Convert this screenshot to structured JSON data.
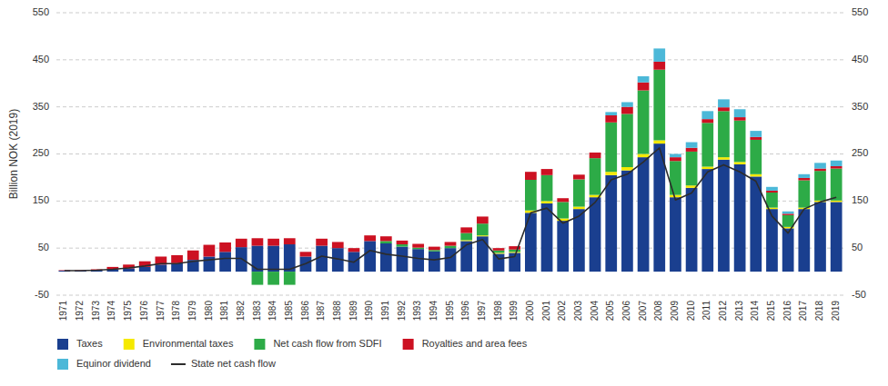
{
  "chart_data": {
    "type": "bar",
    "stacked": true,
    "ylabel": "Billion NOK (2019)",
    "categories": [
      "1971",
      "1972",
      "1973",
      "1974",
      "1975",
      "1976",
      "1977",
      "1978",
      "1979",
      "1980",
      "1981",
      "1982",
      "1983",
      "1984",
      "1985",
      "1986",
      "1987",
      "1988",
      "1989",
      "1990",
      "1991",
      "1992",
      "1993",
      "1994",
      "1995",
      "1996",
      "1997",
      "1998",
      "1999",
      "2000",
      "2001",
      "2002",
      "2003",
      "2004",
      "2005",
      "2006",
      "2007",
      "2008",
      "2009",
      "2010",
      "2011",
      "2012",
      "2013",
      "2014",
      "2015",
      "2016",
      "2017",
      "2018",
      "2019"
    ],
    "series": [
      {
        "name": "Taxes",
        "color": "#1A3F8F",
        "values": [
          2,
          2,
          3,
          5,
          7,
          10,
          15,
          18,
          25,
          32,
          42,
          52,
          55,
          55,
          58,
          32,
          55,
          50,
          42,
          65,
          60,
          53,
          48,
          43,
          50,
          65,
          75,
          38,
          40,
          125,
          145,
          108,
          133,
          158,
          205,
          215,
          243,
          272,
          158,
          178,
          218,
          238,
          228,
          202,
          133,
          92,
          133,
          148,
          148
        ]
      },
      {
        "name": "Environmental taxes",
        "color": "#F5E900",
        "values": [
          0,
          0,
          0,
          0,
          0,
          0,
          0,
          0,
          0,
          0,
          0,
          0,
          0,
          0,
          0,
          0,
          0,
          0,
          0,
          0,
          0,
          0,
          0,
          0,
          0,
          2,
          2,
          2,
          2,
          5,
          5,
          5,
          5,
          5,
          7,
          7,
          7,
          7,
          5,
          5,
          5,
          5,
          5,
          5,
          3,
          3,
          3,
          3,
          3
        ]
      },
      {
        "name": "Net cash flow from SDFI",
        "color": "#2DAB47",
        "values": [
          0,
          0,
          0,
          0,
          0,
          0,
          0,
          0,
          0,
          0,
          0,
          0,
          -28,
          -28,
          -28,
          0,
          0,
          0,
          0,
          0,
          5,
          5,
          3,
          3,
          5,
          15,
          25,
          5,
          5,
          65,
          55,
          35,
          58,
          78,
          105,
          113,
          135,
          150,
          72,
          72,
          93,
          98,
          88,
          73,
          32,
          25,
          58,
          63,
          68
        ]
      },
      {
        "name": "Royalties and area fees",
        "color": "#CC1122",
        "values": [
          1,
          1,
          2,
          5,
          8,
          12,
          17,
          17,
          20,
          25,
          20,
          18,
          16,
          15,
          13,
          10,
          15,
          13,
          8,
          12,
          10,
          8,
          8,
          7,
          8,
          12,
          15,
          5,
          7,
          17,
          13,
          8,
          10,
          12,
          15,
          15,
          17,
          17,
          8,
          8,
          8,
          8,
          7,
          6,
          4,
          3,
          5,
          5,
          5
        ]
      },
      {
        "name": "Equinor dividend",
        "color": "#4CB8D8",
        "values": [
          0,
          0,
          0,
          0,
          0,
          0,
          0,
          0,
          0,
          0,
          0,
          0,
          0,
          0,
          0,
          0,
          0,
          0,
          0,
          0,
          0,
          0,
          0,
          0,
          0,
          0,
          0,
          0,
          0,
          0,
          0,
          0,
          0,
          0,
          7,
          10,
          13,
          28,
          7,
          12,
          17,
          17,
          17,
          13,
          8,
          5,
          8,
          12,
          12
        ]
      },
      {
        "name": "State net cash flow",
        "type": "line",
        "color": "#2C2C2C",
        "values": [
          2,
          2,
          3,
          5,
          8,
          12,
          17,
          17,
          22,
          25,
          28,
          28,
          5,
          5,
          5,
          17,
          33,
          27,
          20,
          45,
          37,
          33,
          28,
          25,
          30,
          57,
          68,
          27,
          32,
          125,
          135,
          103,
          118,
          147,
          195,
          207,
          233,
          263,
          152,
          167,
          212,
          227,
          212,
          192,
          118,
          82,
          133,
          148,
          158
        ]
      }
    ],
    "ylim": [
      -50,
      550
    ],
    "yticks": [
      -50,
      50,
      150,
      250,
      350,
      450,
      550
    ],
    "grid": true,
    "legend": "bottom"
  }
}
